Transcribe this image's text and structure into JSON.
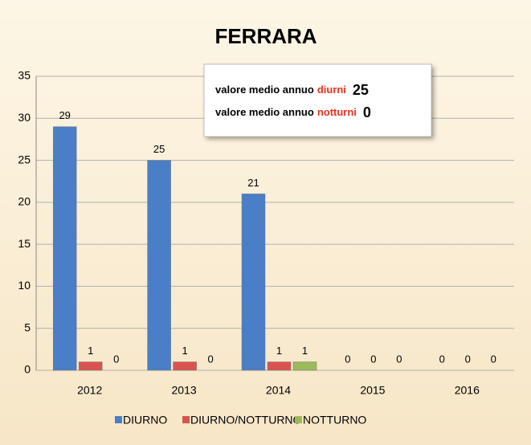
{
  "chart_data": {
    "type": "bar",
    "title": "FERRARA",
    "categories": [
      "2012",
      "2013",
      "2014",
      "2015",
      "2016"
    ],
    "series": [
      {
        "name": "DIURNO",
        "color": "#4a7ec6",
        "values": [
          29,
          25,
          21,
          0,
          0
        ]
      },
      {
        "name": "DIURNO/NOTTURNO",
        "color": "#d9534f",
        "values": [
          1,
          1,
          1,
          0,
          0
        ]
      },
      {
        "name": "NOTTURNO",
        "color": "#9bbb59",
        "values": [
          0,
          0,
          1,
          0,
          0
        ]
      }
    ],
    "ylim": [
      0,
      35
    ],
    "yticks": [
      0,
      5,
      10,
      15,
      20,
      25,
      30,
      35
    ],
    "grid": true,
    "legend": "bottom",
    "annotations": [
      {
        "text": "valore medio annuo",
        "highlight": "diurni",
        "value": 25
      },
      {
        "text": "valore medio annuo",
        "highlight": "notturni",
        "value": 0
      }
    ]
  }
}
